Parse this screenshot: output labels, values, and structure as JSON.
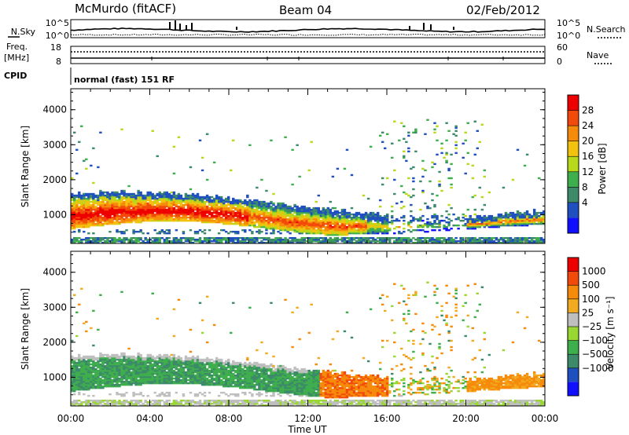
{
  "header": {
    "station": "McMurdo (fitACF)",
    "beam": "Beam 04",
    "date": "02/Feb/2012"
  },
  "panels": {
    "nsky_label": "N.Sky",
    "nsearch_label": "N.Search",
    "nsky_ticks": [
      "10^5",
      "10^0"
    ],
    "nsearch_ticks": [
      "10^5",
      "10^0"
    ],
    "freq_label": "Freq.",
    "freq_unit": "[MHz]",
    "freq_ticks": [
      "18",
      "8"
    ],
    "nave_label": "Nave",
    "nave_ticks": [
      "60",
      "0"
    ],
    "cpid_label": "CPID",
    "cpid_value": "normal (fast) 151 RF"
  },
  "colors": {
    "power_scale": [
      "#1010ff",
      "#2050c0",
      "#3c8a6a",
      "#3fae4d",
      "#b8d81a",
      "#f2c20f",
      "#f68a0a",
      "#f24a0a",
      "#ee0000"
    ],
    "velocity_scale": [
      "#ee0000",
      "#f24a0a",
      "#f68a0a",
      "#f2aa20",
      "#bfbfbf",
      "#99d833",
      "#3fae4d",
      "#3c8a6a",
      "#2050c0",
      "#1010ff"
    ]
  },
  "chart_data": [
    {
      "type": "heatmap",
      "name": "power",
      "ylabel": "Slant Range [km]",
      "ylim": [
        180,
        4600
      ],
      "y_ticks": [
        "4000",
        "3000",
        "2000",
        "1000"
      ],
      "x_ticks": [
        "00:00",
        "04:00",
        "08:00",
        "12:00",
        "16:00",
        "20:00",
        "00:00"
      ],
      "colorbar_label": "Power [dB]",
      "colorbar_ticks": [
        "28",
        "24",
        "20",
        "16",
        "12",
        "8",
        "4"
      ]
    },
    {
      "type": "heatmap",
      "name": "velocity",
      "ylabel": "Slant Range [km]",
      "ylim": [
        180,
        4600
      ],
      "y_ticks": [
        "4000",
        "3000",
        "2000",
        "1000"
      ],
      "x_ticks": [
        "00:00",
        "04:00",
        "08:00",
        "12:00",
        "16:00",
        "20:00",
        "00:00"
      ],
      "xlabel": "Time UT",
      "colorbar_label": "Velocity [m s⁻¹]",
      "colorbar_ticks": [
        "1000",
        "500",
        "100",
        "25",
        "−25",
        "−100",
        "−500",
        "−1000"
      ]
    }
  ]
}
